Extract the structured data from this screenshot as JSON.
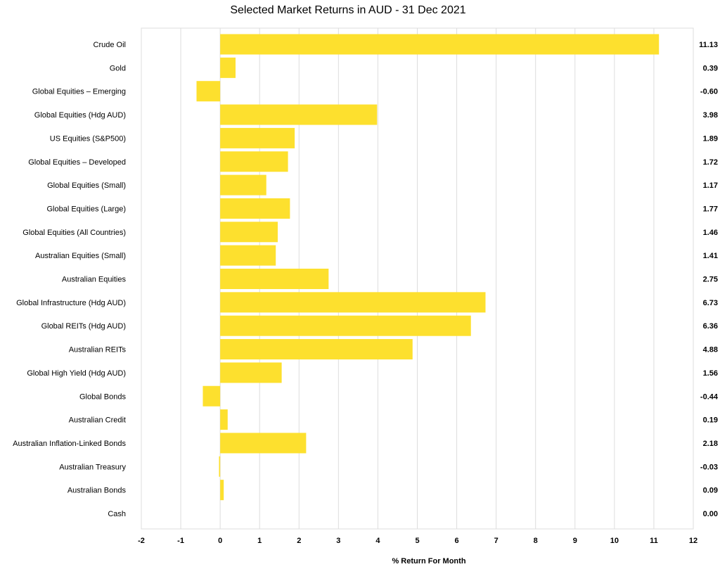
{
  "chart_data": {
    "type": "bar",
    "orientation": "horizontal",
    "title": "Selected Market Returns in AUD - 31 Dec 2021",
    "xlabel": "% Return For Month",
    "ylabel": "",
    "xlim": [
      -2,
      12
    ],
    "xticks": [
      "-2",
      "-1",
      "0",
      "1",
      "2",
      "3",
      "4",
      "5",
      "6",
      "7",
      "8",
      "9",
      "10",
      "11",
      "12"
    ],
    "bar_color": "#FDE02E",
    "grid": true,
    "categories": [
      "Crude Oil",
      "Gold",
      "Global Equities – Emerging",
      "Global Equities (Hdg AUD)",
      "US Equities (S&P500)",
      "Global Equities – Developed",
      "Global Equities (Small)",
      "Global Equities (Large)",
      "Global Equities (All Countries)",
      "Australian Equities (Small)",
      "Australian Equities",
      "Global Infrastructure (Hdg AUD)",
      "Global REITs (Hdg AUD)",
      "Australian REITs",
      "Global High Yield (Hdg AUD)",
      "Global Bonds",
      "Australian Credit",
      "Australian Inflation-Linked Bonds",
      "Australian Treasury",
      "Australian Bonds",
      "Cash"
    ],
    "values": [
      11.13,
      0.39,
      -0.6,
      3.98,
      1.89,
      1.72,
      1.17,
      1.77,
      1.46,
      1.41,
      2.75,
      6.73,
      6.36,
      4.88,
      1.56,
      -0.44,
      0.19,
      2.18,
      -0.03,
      0.09,
      0.0
    ],
    "value_labels": [
      "11.13",
      "0.39",
      "-0.60",
      "3.98",
      "1.89",
      "1.72",
      "1.17",
      "1.77",
      "1.46",
      "1.41",
      "2.75",
      "6.73",
      "6.36",
      "4.88",
      "1.56",
      "-0.44",
      "0.19",
      "2.18",
      "-0.03",
      "0.09",
      "0.00"
    ]
  }
}
